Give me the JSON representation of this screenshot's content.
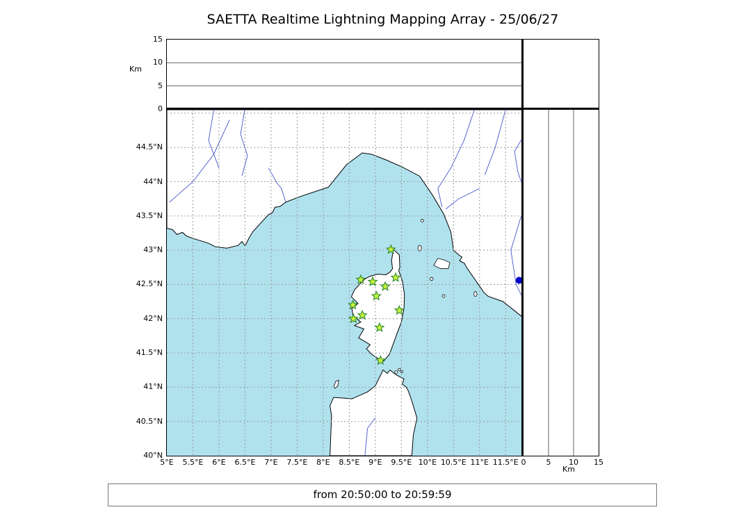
{
  "title": "SAETTA Realtime Lightning Mapping Array - 25/06/27",
  "footer": {
    "text": "from 20:50:00 to 20:59:59"
  },
  "colors": {
    "sea": "#b0e2ee",
    "land": "#ffffff",
    "coastline": "#000000",
    "river": "#4455cc",
    "grid": "#999999",
    "station_fill": "#c6f23c",
    "station_edge": "#2d8a2d",
    "event_dot": "#0000cc",
    "frame": "#000000"
  },
  "map": {
    "lon_min": 5.0,
    "lon_max": 11.83,
    "lat_min": 40.0,
    "lat_max": 45.05,
    "lon_tick_step": 0.5,
    "lat_tick_step": 0.5,
    "lon_ticks": [
      {
        "value": 5.0,
        "label": "5°E"
      },
      {
        "value": 5.5,
        "label": "5.5°E"
      },
      {
        "value": 6.0,
        "label": "6°E"
      },
      {
        "value": 6.5,
        "label": "6.5°E"
      },
      {
        "value": 7.0,
        "label": "7°E"
      },
      {
        "value": 7.5,
        "label": "7.5°E"
      },
      {
        "value": 8.0,
        "label": "8°E"
      },
      {
        "value": 8.5,
        "label": "8.5°E"
      },
      {
        "value": 9.0,
        "label": "9°E"
      },
      {
        "value": 9.5,
        "label": "9.5°E"
      },
      {
        "value": 10.0,
        "label": "10°E"
      },
      {
        "value": 10.5,
        "label": "10.5°E"
      },
      {
        "value": 11.0,
        "label": "11°E"
      },
      {
        "value": 11.5,
        "label": "11.5°E"
      }
    ],
    "lat_ticks": [
      {
        "value": 44.5,
        "label": "44.5°N"
      },
      {
        "value": 44.0,
        "label": "44°N"
      },
      {
        "value": 43.5,
        "label": "43.5°N"
      },
      {
        "value": 43.0,
        "label": "43°N"
      },
      {
        "value": 42.5,
        "label": "42.5°N"
      },
      {
        "value": 42.0,
        "label": "42°N"
      },
      {
        "value": 41.5,
        "label": "41.5°N"
      },
      {
        "value": 41.0,
        "label": "41°N"
      },
      {
        "value": 40.5,
        "label": "40.5°N"
      },
      {
        "value": 40.0,
        "label": "40°N"
      }
    ]
  },
  "altitude_axis": {
    "label": "Km",
    "min": 0,
    "max": 15,
    "ticks": [
      0,
      5,
      10,
      15
    ],
    "gridlines": [
      5,
      10
    ]
  },
  "chart_data": {
    "type": "scatter",
    "title": "SAETTA Realtime Lightning Mapping Array - 25/06/27",
    "date": "25/06/27",
    "time_window": {
      "from": "20:50:00",
      "to": "20:59:59"
    },
    "map_panel": {
      "xlim_lon_E": [
        5.0,
        11.83
      ],
      "ylim_lat_N": [
        40.0,
        45.05
      ],
      "grid": "dashed, 0.5 degree spacing"
    },
    "altitude_panels": {
      "unit": "Km",
      "range": [
        0,
        15
      ],
      "ticks": [
        0,
        5,
        10,
        15
      ],
      "content": "empty"
    },
    "stations": [
      {
        "lon": 9.3,
        "lat": 43.01
      },
      {
        "lon": 8.72,
        "lat": 42.57
      },
      {
        "lon": 8.95,
        "lat": 42.54
      },
      {
        "lon": 9.19,
        "lat": 42.47
      },
      {
        "lon": 9.39,
        "lat": 42.6
      },
      {
        "lon": 9.02,
        "lat": 42.33
      },
      {
        "lon": 8.57,
        "lat": 42.2
      },
      {
        "lon": 9.46,
        "lat": 42.12
      },
      {
        "lon": 8.75,
        "lat": 42.05
      },
      {
        "lon": 8.58,
        "lat": 42.0
      },
      {
        "lon": 9.08,
        "lat": 41.87
      },
      {
        "lon": 9.1,
        "lat": 41.39
      }
    ],
    "events": [
      {
        "lon": 11.76,
        "lat": 42.56
      }
    ]
  }
}
